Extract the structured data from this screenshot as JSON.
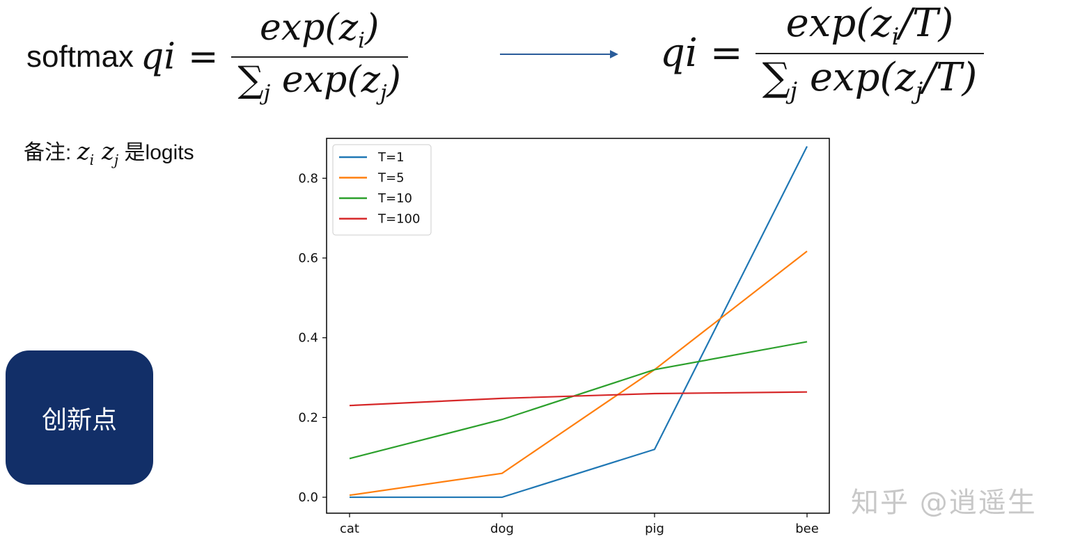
{
  "formula_left": {
    "label": "softmax",
    "lhs": "qi",
    "equals": "=",
    "num_fn": "exp(",
    "num_var": "z",
    "num_sub": "i",
    "num_close": ")",
    "den_sigma": "∑",
    "den_sigma_sub": "j",
    "den_fn": "exp(",
    "den_var": "z",
    "den_sub": "j",
    "den_close": ")"
  },
  "formula_right": {
    "lhs": "qi",
    "equals": "=",
    "num_fn": "exp(",
    "num_var": "z",
    "num_sub": "i",
    "num_close": "/T)",
    "den_sigma": "∑",
    "den_sigma_sub": "j",
    "den_fn": "exp(",
    "den_var": "z",
    "den_sub": "j",
    "den_close": "/T)"
  },
  "note": {
    "prefix": "备注:",
    "z1": "z",
    "z1_sub": "i",
    "z2": "z",
    "z2_sub": "j",
    "suffix": "是logits"
  },
  "innovation_button": {
    "label": "创新点"
  },
  "watermark": "知乎 @逍遥生",
  "colors": {
    "arrow": "#2a5c9a",
    "button": "#122f68",
    "axes": "#000000"
  },
  "chart_data": {
    "type": "line",
    "categories": [
      "cat",
      "dog",
      "pig",
      "bee"
    ],
    "ylim": [
      -0.04,
      0.9
    ],
    "yticks": [
      0.0,
      0.2,
      0.4,
      0.6,
      0.8
    ],
    "ytick_labels": [
      "0.0",
      "0.2",
      "0.4",
      "0.6",
      "0.8"
    ],
    "legend_position": "top-left",
    "grid": false,
    "series": [
      {
        "name": "T=1",
        "color": "#1f77b4",
        "values": [
          0.0,
          0.0,
          0.12,
          0.88
        ]
      },
      {
        "name": "T=5",
        "color": "#ff7f0e",
        "values": [
          0.005,
          0.06,
          0.32,
          0.617
        ]
      },
      {
        "name": "T=10",
        "color": "#2ca02c",
        "values": [
          0.097,
          0.195,
          0.32,
          0.39
        ]
      },
      {
        "name": "T=100",
        "color": "#d62728",
        "values": [
          0.23,
          0.248,
          0.26,
          0.264
        ]
      }
    ]
  }
}
